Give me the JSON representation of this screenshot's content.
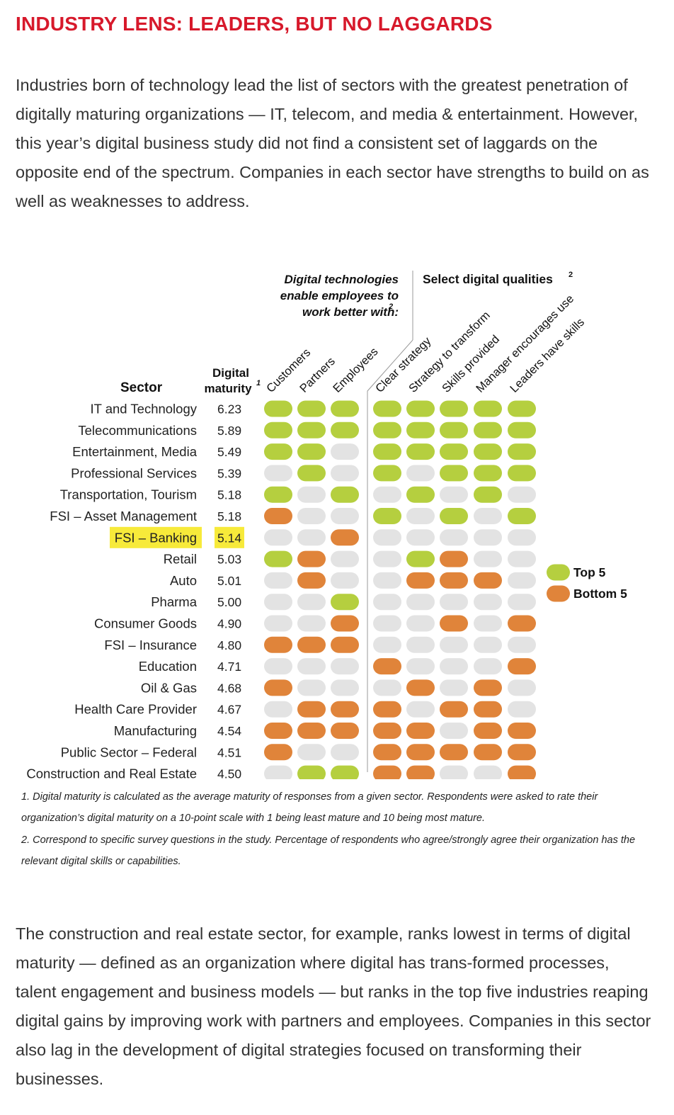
{
  "title": "INDUSTRY LENS: LEADERS, BUT NO LAGGARDS",
  "intro": "Industries born of technology lead the list of sectors with the greatest penetration of digitally maturing organizations — IT, telecom, and media & entertainment. However, this year’s digital business study did not find a consistent set of laggards on the opposite end of the spectrum. Companies in each sector have strengths to build on as well as weaknesses to address.",
  "outro": "The construction and real estate sector, for example, ranks lowest in terms of digital maturity — defined as an organization where digital has trans-formed processes, talent engagement and business models — but ranks in the top five industries reaping digital gains by improving work with partners and employees. Companies in this sector also lag in the development of digital strategies focused on transforming their businesses.",
  "footnotes": [
    "1. Digital maturity is calculated as the average maturity of responses from a given sector. Respondents were asked to rate their organization’s digital maturity on a 10-point scale with 1 being least mature and 10 being most mature.",
    "2. Correspond to specific survey questions in the study. Percentage of respondents who agree/strongly agree their organization has the relevant digital skills or capabilities."
  ],
  "colors": {
    "top5": "#b5cf3f",
    "bottom5": "#e0843a",
    "neutral": "#e3e3e3",
    "title": "#d7192b",
    "highlight": "#f7ea3a"
  },
  "chart_data": {
    "type": "table",
    "sector_header": "Sector",
    "maturity_header": [
      "Digital",
      "maturity"
    ],
    "maturity_footnote": "1",
    "group1_label": [
      "Digital technologies",
      "enable employees to",
      "work better with:"
    ],
    "group1_footnote": "2",
    "group2_label": "Select digital qualities",
    "group2_footnote": "2",
    "columns": [
      "Customers",
      "Partners",
      "Employees",
      "Clear strategy",
      "Strategy to transform",
      "Skills provided",
      "Manager encourages use",
      "Leaders have skills"
    ],
    "legend": [
      {
        "key": "T",
        "label": "Top 5"
      },
      {
        "key": "B",
        "label": "Bottom 5"
      }
    ],
    "highlighted_sector": "FSI – Banking",
    "rows": [
      {
        "sector": "IT and Technology",
        "maturity": "6.23",
        "cells": "TTTTTTTT"
      },
      {
        "sector": "Telecommunications",
        "maturity": "5.89",
        "cells": "TTTTTTTT"
      },
      {
        "sector": "Entertainment, Media",
        "maturity": "5.49",
        "cells": "TTNTTTTT"
      },
      {
        "sector": "Professional Services",
        "maturity": "5.39",
        "cells": "NTNTNTTT"
      },
      {
        "sector": "Transportation, Tourism",
        "maturity": "5.18",
        "cells": "TNTNTNTN"
      },
      {
        "sector": "FSI – Asset Management",
        "maturity": "5.18",
        "cells": "BNNTNTNT"
      },
      {
        "sector": "FSI – Banking",
        "maturity": "5.14",
        "cells": "NNBNNNNN"
      },
      {
        "sector": "Retail",
        "maturity": "5.03",
        "cells": "TBNNTBNN"
      },
      {
        "sector": "Auto",
        "maturity": "5.01",
        "cells": "NBNNBBBN"
      },
      {
        "sector": "Pharma",
        "maturity": "5.00",
        "cells": "NNTNNNNN"
      },
      {
        "sector": "Consumer Goods",
        "maturity": "4.90",
        "cells": "NNBNNBNB"
      },
      {
        "sector": "FSI – Insurance",
        "maturity": "4.80",
        "cells": "BBBNNNNN"
      },
      {
        "sector": "Education",
        "maturity": "4.71",
        "cells": "NNNBNNNB"
      },
      {
        "sector": "Oil & Gas",
        "maturity": "4.68",
        "cells": "BNNNBNBN"
      },
      {
        "sector": "Health Care Provider",
        "maturity": "4.67",
        "cells": "NBBBNBBN"
      },
      {
        "sector": "Manufacturing",
        "maturity": "4.54",
        "cells": "BBBBBNBB"
      },
      {
        "sector": "Public Sector – Federal",
        "maturity": "4.51",
        "cells": "BNNBBBBB"
      },
      {
        "sector": "Construction and Real Estate",
        "maturity": "4.50",
        "cells": "NTTBBNNB"
      }
    ]
  }
}
